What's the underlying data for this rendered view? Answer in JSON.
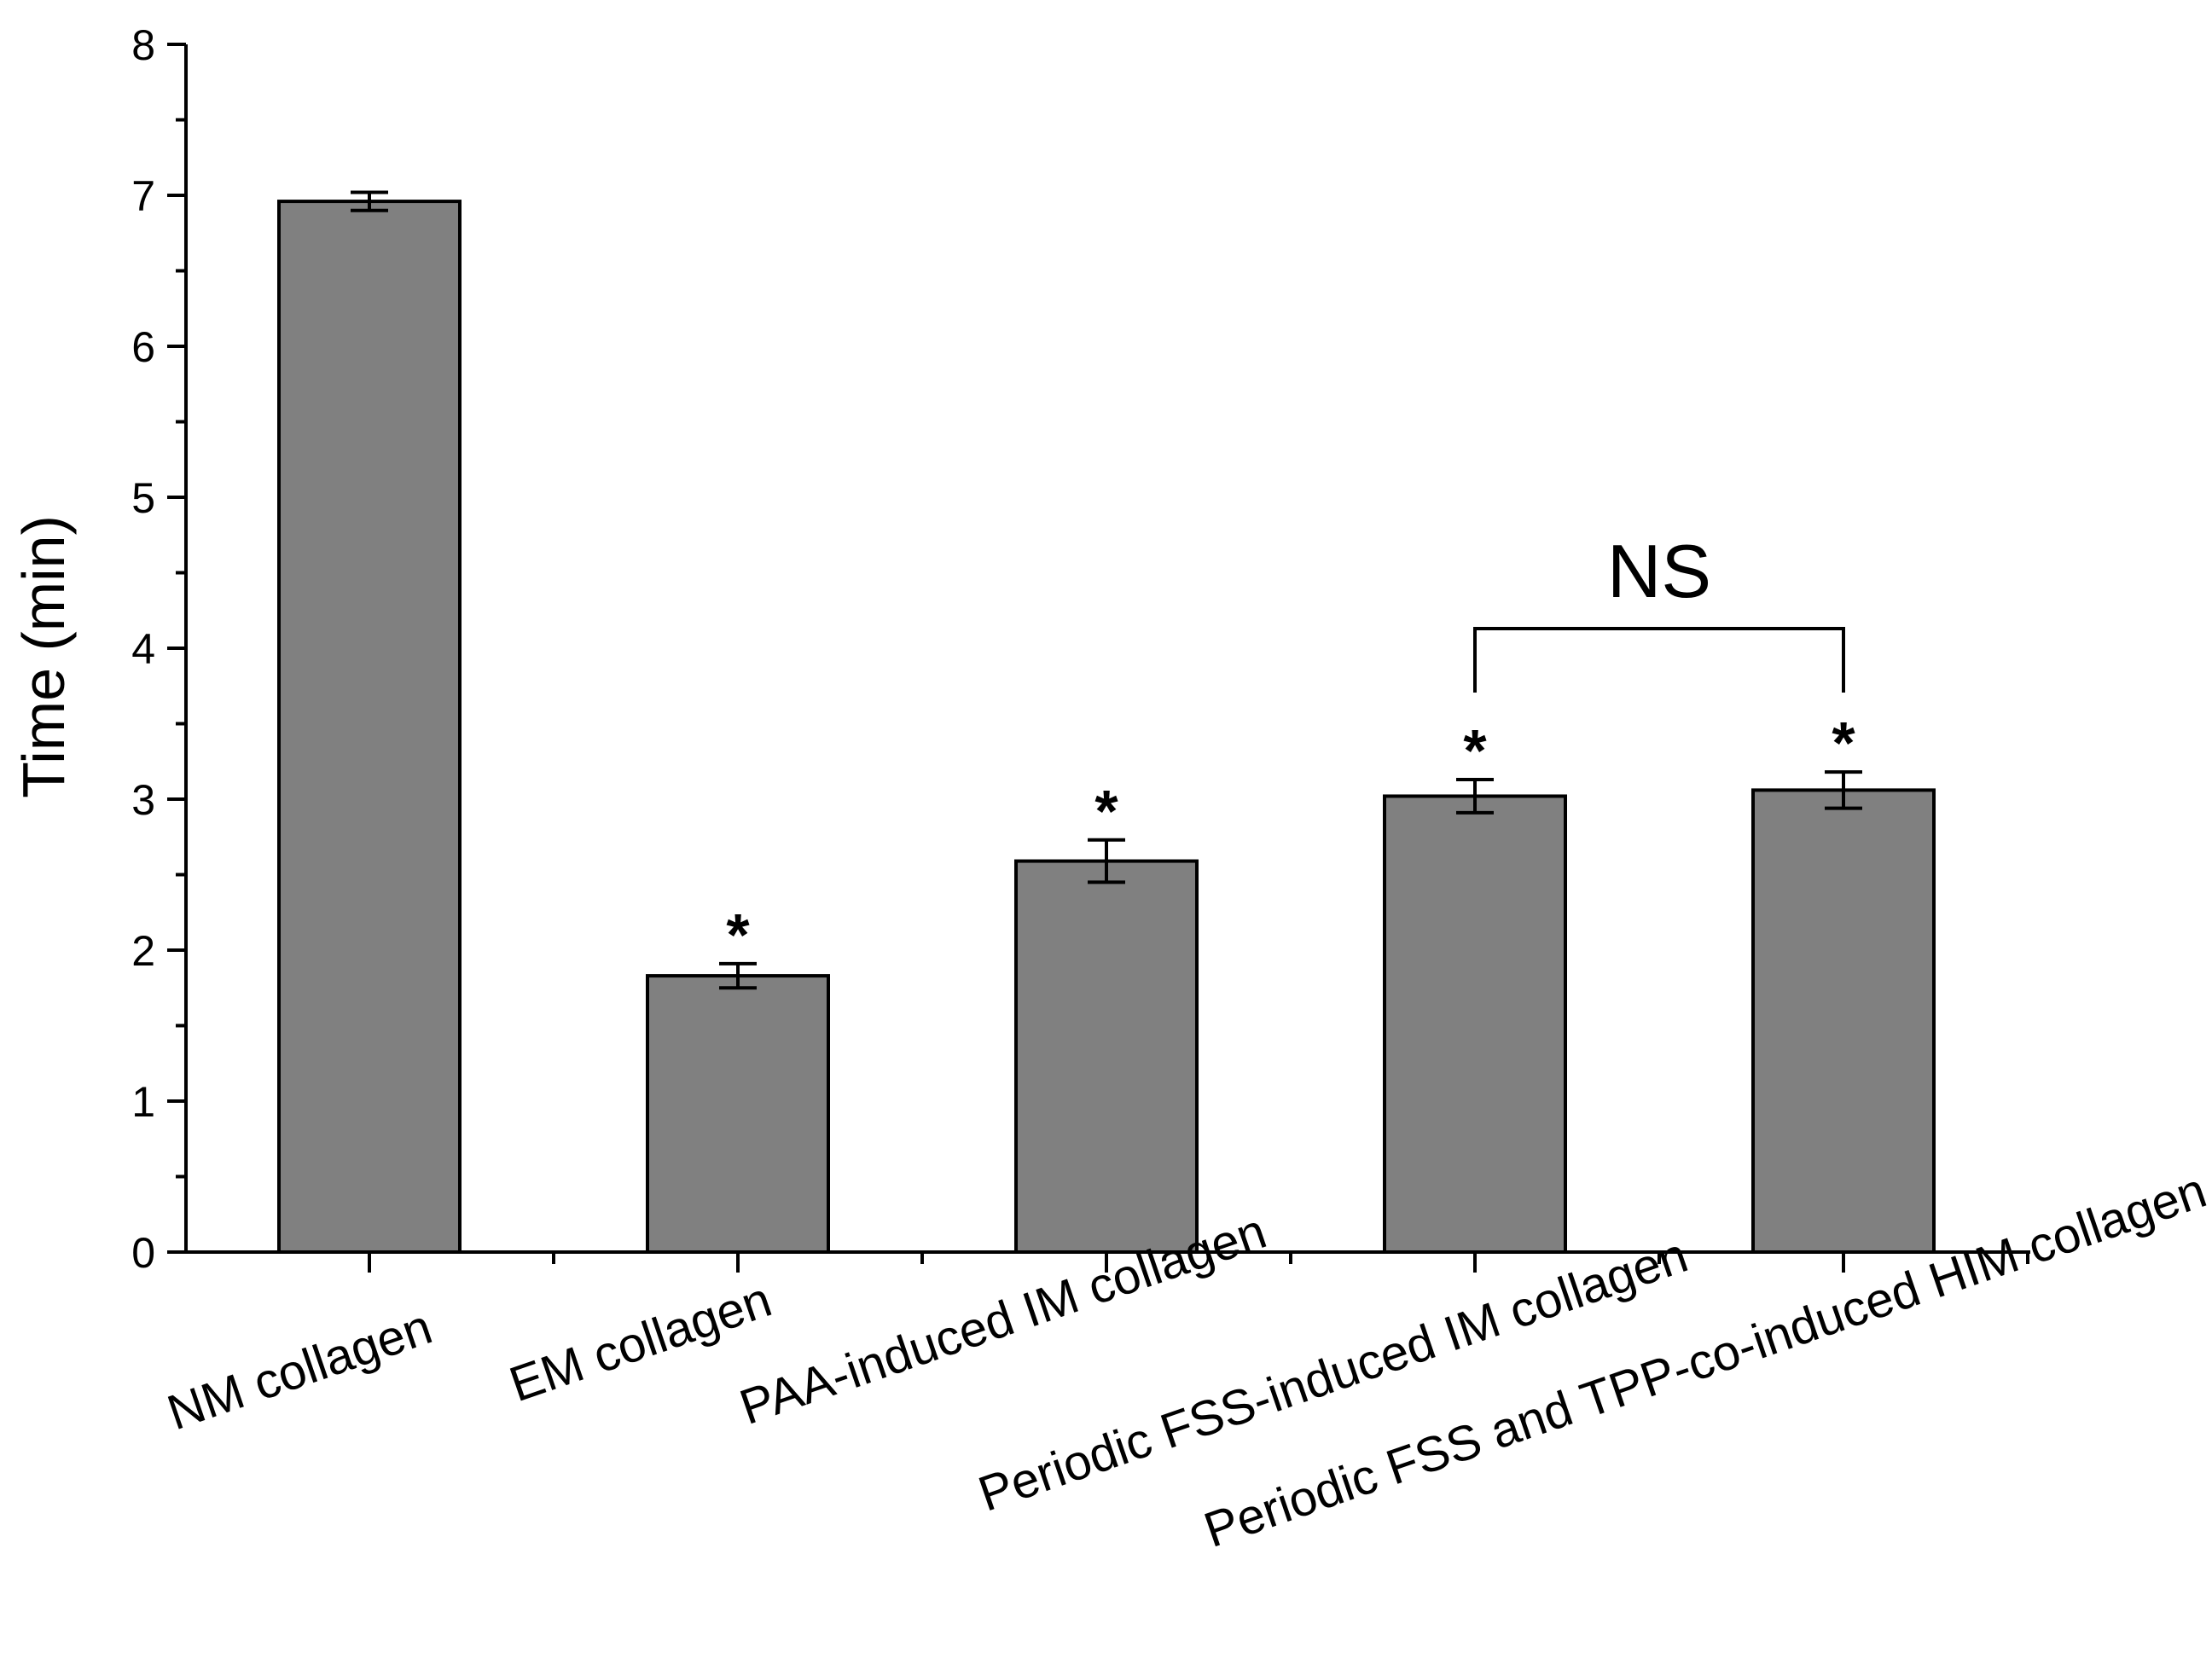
{
  "chart_data": {
    "type": "bar",
    "categories": [
      "NM collagen",
      "EM collagen",
      "PAA-induced IM collagen",
      "Periodic FSS-induced IM collagen",
      "Periodic FSS and TPP-co-induced HIM collagen"
    ],
    "values": [
      6.96,
      1.83,
      2.59,
      3.02,
      3.06
    ],
    "errors": [
      0.06,
      0.08,
      0.14,
      0.11,
      0.12
    ],
    "significance": [
      "",
      "*",
      "*",
      "*",
      "*"
    ],
    "bracket": {
      "from_index": 3,
      "to_index": 4,
      "label": "NS"
    },
    "ylabel": "Time (min)",
    "xlabel": "",
    "ylim": [
      0,
      8
    ],
    "yticks": [
      0,
      1,
      2,
      3,
      4,
      5,
      6,
      7,
      8
    ],
    "bar_color": "#808080",
    "grid": false
  }
}
